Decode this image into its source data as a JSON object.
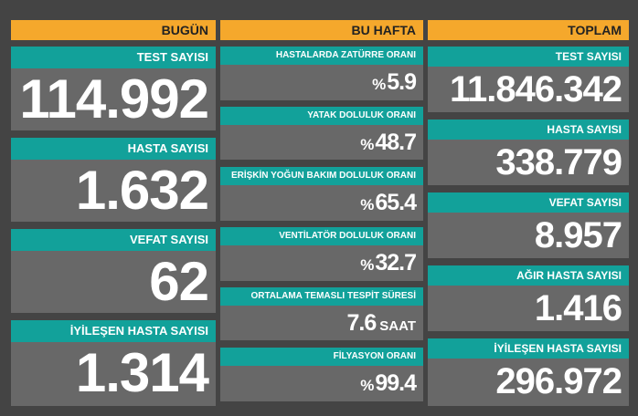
{
  "today": {
    "header": "BUGÜN",
    "cards": [
      {
        "label": "TEST SAYISI",
        "value": "114.992"
      },
      {
        "label": "HASTA SAYISI",
        "value": "1.632"
      },
      {
        "label": "VEFAT SAYISI",
        "value": "62"
      },
      {
        "label": "İYİLEŞEN HASTA SAYISI",
        "value": "1.314"
      }
    ]
  },
  "week": {
    "header": "BU HAFTA",
    "cards": [
      {
        "label": "HASTALARDA ZATÜRRE ORANI",
        "prefix": "%",
        "value": "5.9"
      },
      {
        "label": "YATAK DOLULUK ORANI",
        "prefix": "%",
        "value": "48.7"
      },
      {
        "label": "ERİŞKİN YOĞUN BAKIM DOLULUK ORANI",
        "prefix": "%",
        "value": "65.4"
      },
      {
        "label": "VENTİLATÖR DOLULUK ORANI",
        "prefix": "%",
        "value": "32.7"
      },
      {
        "label": "ORTALAMA TEMASLI TESPİT SÜRESİ",
        "value": "7.6",
        "unit": "SAAT"
      },
      {
        "label": "FİLYASYON ORANI",
        "prefix": "%",
        "value": "99.4"
      }
    ]
  },
  "total": {
    "header": "TOPLAM",
    "cards": [
      {
        "label": "TEST SAYISI",
        "value": "11.846.342"
      },
      {
        "label": "HASTA SAYISI",
        "value": "338.779"
      },
      {
        "label": "VEFAT SAYISI",
        "value": "8.957"
      },
      {
        "label": "AĞIR HASTA SAYISI",
        "value": "1.416"
      },
      {
        "label": "İYİLEŞEN HASTA SAYISI",
        "value": "296.972"
      }
    ]
  },
  "colors": {
    "header": "#f5a82c",
    "label_bar": "#12a19a",
    "card": "#686868",
    "background": "#444444"
  }
}
